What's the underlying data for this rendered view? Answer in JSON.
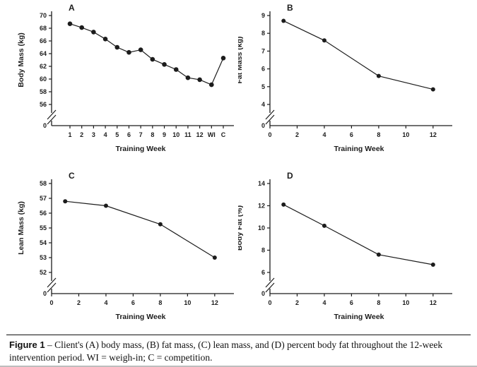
{
  "figure": {
    "caption_label": "Figure 1",
    "caption_body": "– Client's (A) body mass, (B) fat mass, (C) lean mass, and (D) percent body fat throughout the 12-week intervention period. WI = weigh-in; C = competition."
  },
  "chart_data": [
    {
      "type": "line",
      "panel_label": "A",
      "xlabel": "Training Week",
      "ylabel": "Body Mass (kg)",
      "x_mode": "categorical",
      "categories": [
        "1",
        "2",
        "3",
        "4",
        "5",
        "6",
        "7",
        "8",
        "9",
        "10",
        "11",
        "12",
        "WI",
        "C"
      ],
      "values": [
        68.7,
        68.1,
        67.4,
        66.3,
        65.0,
        64.2,
        64.6,
        63.1,
        62.3,
        61.5,
        60.2,
        59.9,
        59.1,
        63.3
      ],
      "yticks": [
        56,
        58,
        60,
        62,
        64,
        66,
        68,
        70
      ],
      "y_origin_label": "0",
      "y_axis_break": true,
      "grid": false,
      "legend": false,
      "marker": "filled-circle",
      "line_color": "#1c1c1c"
    },
    {
      "type": "line",
      "panel_label": "B",
      "xlabel": "Training Week",
      "ylabel": "Fat Mass (kg)",
      "x_mode": "numeric",
      "x": [
        1,
        4,
        8,
        12
      ],
      "values": [
        8.7,
        7.6,
        5.6,
        4.85
      ],
      "xticks": [
        0,
        2,
        4,
        6,
        8,
        10,
        12
      ],
      "xlim": [
        0,
        13.1
      ],
      "yticks": [
        4,
        5,
        6,
        7,
        8,
        9
      ],
      "y_origin_label": "0",
      "y_axis_break": true,
      "grid": false,
      "legend": false,
      "marker": "filled-circle",
      "line_color": "#1c1c1c"
    },
    {
      "type": "line",
      "panel_label": "C",
      "xlabel": "Training Week",
      "ylabel": "Lean Mass (kg)",
      "x_mode": "numeric",
      "x": [
        1,
        4,
        8,
        12
      ],
      "values": [
        56.8,
        56.5,
        55.25,
        53.0
      ],
      "xticks": [
        0,
        2,
        4,
        6,
        8,
        10,
        12
      ],
      "xlim": [
        0,
        13.1
      ],
      "yticks": [
        52,
        53,
        54,
        55,
        56,
        57,
        58
      ],
      "y_origin_label": "0",
      "y_axis_break": true,
      "grid": false,
      "legend": false,
      "marker": "filled-circle",
      "line_color": "#1c1c1c"
    },
    {
      "type": "line",
      "panel_label": "D",
      "xlabel": "Training Week",
      "ylabel": "Body Fat (%)",
      "x_mode": "numeric",
      "x": [
        1,
        4,
        8,
        12
      ],
      "values": [
        12.1,
        10.2,
        7.6,
        6.7
      ],
      "xticks": [
        0,
        2,
        4,
        6,
        8,
        10,
        12
      ],
      "xlim": [
        0,
        13.1
      ],
      "yticks": [
        6,
        8,
        10,
        12,
        14
      ],
      "y_origin_label": "0",
      "y_axis_break": true,
      "grid": false,
      "legend": false,
      "marker": "filled-circle",
      "line_color": "#1c1c1c"
    }
  ]
}
